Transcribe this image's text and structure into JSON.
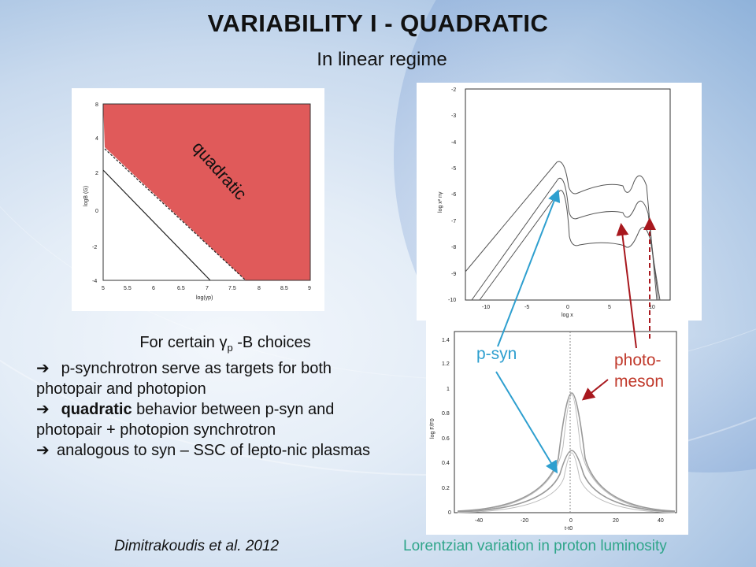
{
  "title": "VARIABILITY I - QUADRATIC",
  "subtitle": "In linear regime",
  "left_plot": {
    "region_label": "quadratic",
    "ylabel": "logB (G)",
    "xlabel": "log(γp)",
    "y_ticks": [
      "8",
      "4",
      "2",
      "0",
      "-2",
      "-4"
    ],
    "x_ticks": [
      "5",
      "5.5",
      "6",
      "6.5",
      "7",
      "7.5",
      "8",
      "8.5",
      "9"
    ],
    "region_color": "#e05a5a"
  },
  "top_right_plot": {
    "ylabel": "log x² nγ",
    "xlabel": "log x",
    "y_ticks": [
      "-2",
      "-3",
      "-4",
      "-5",
      "-6",
      "-7",
      "-8",
      "-9",
      "-10"
    ],
    "x_ticks": [
      "-10",
      "-5",
      "0",
      "5",
      "10"
    ]
  },
  "bottom_right_plot": {
    "ylabel": "log F/F0",
    "xlabel": "t-t0",
    "y_ticks": [
      "1.4",
      "1.2",
      "1",
      "0.8",
      "0.6",
      "0.4",
      "0.2",
      "0"
    ],
    "x_ticks": [
      "-40",
      "-20",
      "0",
      "20",
      "40"
    ]
  },
  "annotations": {
    "psyn": "p-syn",
    "photo_line1": "photo-",
    "photo_line2": "meson",
    "psyn_color": "#2e9fcf",
    "photo_color": "#c0392b"
  },
  "body": {
    "line1_prefix": "For certain γ",
    "line1_sub": "p",
    "line1_suffix": " -B choices",
    "bullet1": "p-synchrotron serve as targets for both photopair and photopion",
    "bullet2_bold": "quadratic",
    "bullet2_rest": " behavior between p-syn and photopair + photopion synchrotron",
    "bullet3": "analogous to syn – SSC of lepto-nic plasmas"
  },
  "caption_left": "Dimitrakoudis et al. 2012",
  "caption_right": "Lorentzian variation in proton luminosity"
}
